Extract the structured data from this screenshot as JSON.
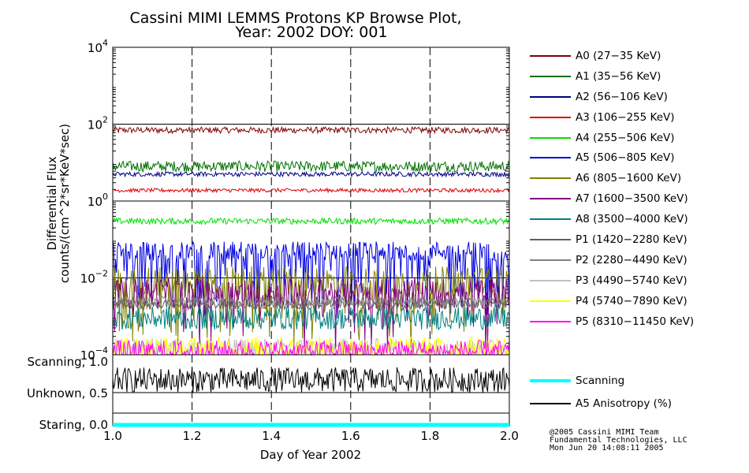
{
  "chart_data": {
    "type": "line",
    "title": "Cassini MIMI LEMMS Protons KP Browse Plot,",
    "subtitle": "Year: 2002 DOY: 001",
    "xlabel": "Day of Year 2002",
    "ylabel_line1": "Differential Flux",
    "ylabel_line2": "counts/(cm^2*sr*KeV*sec)",
    "xlim": [
      1.0,
      2.0
    ],
    "x_ticks": [
      "1.0",
      "1.2",
      "1.4",
      "1.6",
      "1.8",
      "2.0"
    ],
    "yscale": "log",
    "ylim": [
      0.0001,
      10000
    ],
    "y_ticks": [
      {
        "base": "10",
        "exp": "4",
        "value": 10000
      },
      {
        "base": "10",
        "exp": "2",
        "value": 100
      },
      {
        "base": "10",
        "exp": "0",
        "value": 1
      },
      {
        "base": "10",
        "exp": "−2",
        "value": 0.01
      },
      {
        "base": "10",
        "exp": "−4",
        "value": 0.0001
      }
    ],
    "series": [
      {
        "name": "A0 (27−35 KeV)",
        "color": "#800000",
        "level": 70,
        "spread": 0.08,
        "dips": 0
      },
      {
        "name": "A1 (35−56 KeV)",
        "color": "#007000",
        "level": 8,
        "spread": 0.14,
        "dips": 0
      },
      {
        "name": "A2 (56−106 KeV)",
        "color": "#000080",
        "level": 5,
        "spread": 0.06,
        "dips": 0
      },
      {
        "name": "A3 (106−255 KeV)",
        "color": "#e00000",
        "level": 1.9,
        "spread": 0.05,
        "dips": 0
      },
      {
        "name": "A4 (255−506 KeV)",
        "color": "#00e000",
        "level": 0.3,
        "spread": 0.08,
        "dips": 0
      },
      {
        "name": "A5 (506−805 KeV)",
        "color": "#0000e0",
        "level": 0.05,
        "spread": 0.25,
        "dips": 0.35
      },
      {
        "name": "A6 (805−1600 KeV)",
        "color": "#808000",
        "level": 0.008,
        "spread": 0.4,
        "dips": 0.3
      },
      {
        "name": "A7 (1600−3500 KeV)",
        "color": "#800080",
        "level": 0.004,
        "spread": 0.4,
        "dips": 0.1
      },
      {
        "name": "A8 (3500−4000 KeV)",
        "color": "#008080",
        "level": 0.0009,
        "spread": 0.3,
        "dips": 0
      },
      {
        "name": "P1 (1420−2280 KeV)",
        "color": "#606060",
        "level": 0.002,
        "spread": 0.12,
        "dips": 0
      },
      {
        "name": "P2 (2280−4490 KeV)",
        "color": "#808080",
        "level": 0.0025,
        "spread": 0.12,
        "dips": 0
      },
      {
        "name": "P3 (4490−5740 KeV)",
        "color": "#c0c0c0",
        "level": 0.00015,
        "spread": 0.25,
        "dips": 0
      },
      {
        "name": "P4 (5740−7890 KeV)",
        "color": "#ffff00",
        "level": 0.00015,
        "spread": 0.3,
        "dips": 0
      },
      {
        "name": "P5 (8310−11450 KeV)",
        "color": "#ff00ff",
        "level": 0.00012,
        "spread": 0.3,
        "dips": 0
      }
    ],
    "lower_panel": {
      "y_ticks": [
        "Scanning, 1.0",
        "Unknown, 0.5",
        "Staring, 0.0"
      ],
      "ylim": [
        0,
        1
      ],
      "series": [
        {
          "name": "Scanning",
          "color": "#00ffff",
          "value": 0.0
        },
        {
          "name": "A5 Anisotropy (%)",
          "color": "#000000",
          "value": 0.75
        }
      ]
    },
    "legend_position": "right"
  },
  "credits": [
    "@2005 Cassini MIMI Team",
    "Fundamental Technologies, LLC",
    "Mon Jun 20 14:08:11 2005"
  ]
}
